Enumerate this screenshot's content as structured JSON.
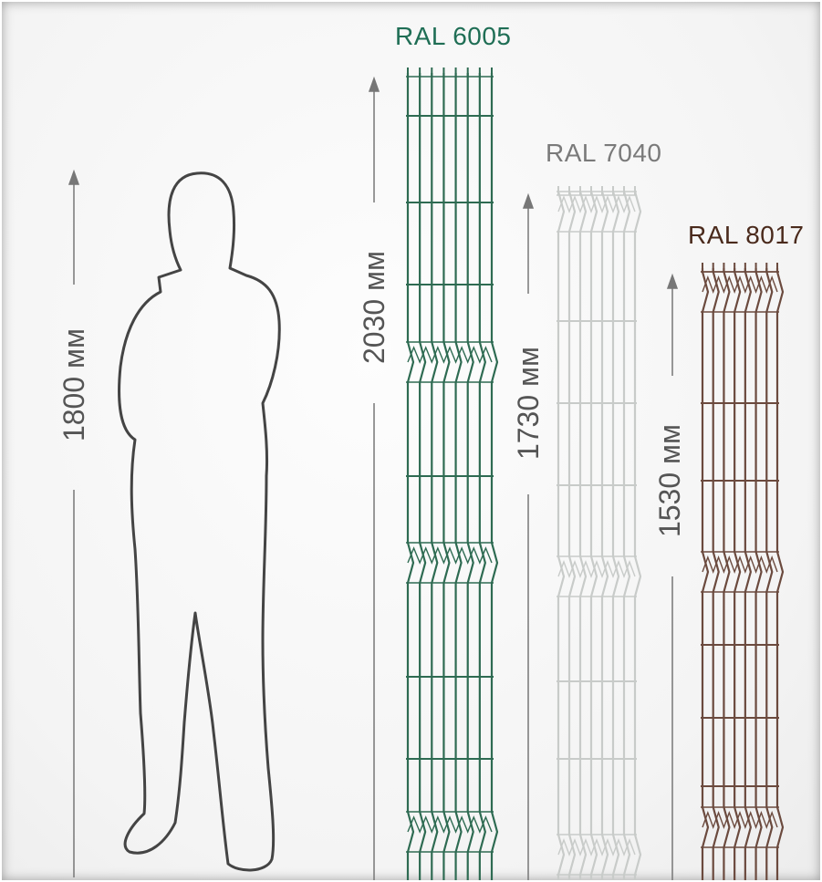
{
  "panels": [
    {
      "ral": "RAL 6005",
      "height": "2030 мм",
      "color": "#2e6b52",
      "label_color": "#1f6e55"
    },
    {
      "ral": "RAL 7040",
      "height": "1730 мм",
      "color": "#c8cbc9",
      "label_color": "#7a7a7a"
    },
    {
      "ral": "RAL 8017",
      "height": "1530 мм",
      "color": "#6b4a3e",
      "label_color": "#4a2a1c"
    }
  ],
  "person": {
    "height": "1800 мм",
    "outline_color": "#444444"
  }
}
